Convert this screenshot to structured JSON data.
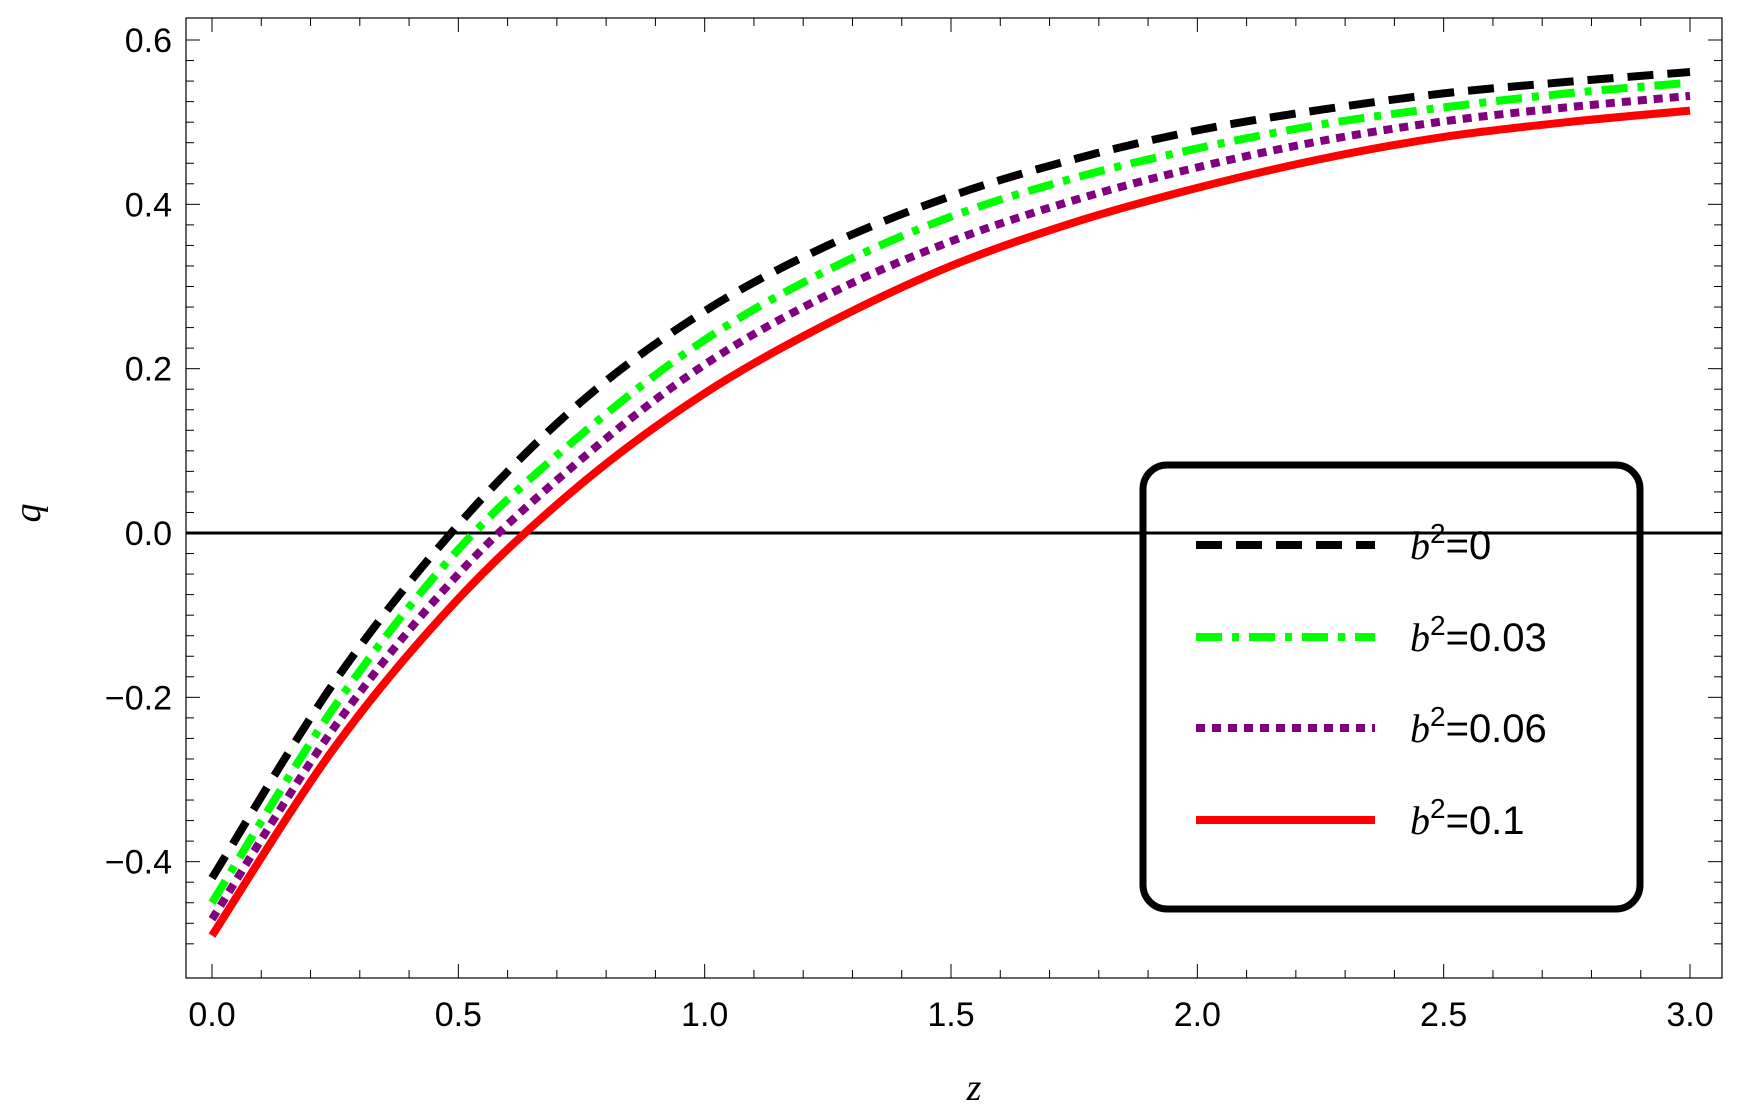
{
  "chart_data": {
    "type": "line",
    "xlabel": "z",
    "ylabel": "q",
    "xlim": [
      0.0,
      3.0
    ],
    "ylim": [
      -0.5,
      0.6
    ],
    "x_ticks": [
      "0.0",
      "0.5",
      "1.0",
      "1.5",
      "2.0",
      "2.5",
      "3.0"
    ],
    "y_ticks": [
      "−0.4",
      "−0.2",
      "0.0",
      "0.2",
      "0.4",
      "0.6"
    ],
    "reference_line": {
      "y": 0.0,
      "color": "#000000"
    },
    "legend": {
      "placement": "lower-right"
    },
    "x": [
      0.0,
      0.25,
      0.5,
      0.75,
      1.0,
      1.25,
      1.5,
      1.75,
      2.0,
      2.25,
      2.5,
      2.75,
      3.0
    ],
    "series": [
      {
        "name": "b2=0",
        "legend_var": "b",
        "legend_sup": "2",
        "legend_value": "=0",
        "color": "#000000",
        "style": "dashed",
        "values": [
          -0.42,
          -0.18,
          0.01,
          0.16,
          0.27,
          0.35,
          0.41,
          0.455,
          0.49,
          0.515,
          0.535,
          0.549,
          0.561
        ]
      },
      {
        "name": "b2=0.03",
        "legend_var": "b",
        "legend_sup": "2",
        "legend_value": "=0.03",
        "color": "#00ff00",
        "style": "dashdot",
        "values": [
          -0.45,
          -0.21,
          -0.02,
          0.12,
          0.235,
          0.32,
          0.385,
          0.432,
          0.468,
          0.497,
          0.518,
          0.535,
          0.548
        ]
      },
      {
        "name": "b2=0.06",
        "legend_var": "b",
        "legend_sup": "2",
        "legend_value": "=0.06",
        "color": "#800080",
        "style": "dotted",
        "values": [
          -0.47,
          -0.235,
          -0.05,
          0.09,
          0.205,
          0.29,
          0.355,
          0.405,
          0.445,
          0.477,
          0.501,
          0.518,
          0.532
        ]
      },
      {
        "name": "b2=0.1",
        "legend_var": "b",
        "legend_sup": "2",
        "legend_value": "=0.1",
        "color": "#ff0000",
        "style": "solid",
        "values": [
          -0.49,
          -0.26,
          -0.08,
          0.06,
          0.17,
          0.255,
          0.325,
          0.378,
          0.42,
          0.455,
          0.482,
          0.5,
          0.514
        ]
      }
    ]
  }
}
